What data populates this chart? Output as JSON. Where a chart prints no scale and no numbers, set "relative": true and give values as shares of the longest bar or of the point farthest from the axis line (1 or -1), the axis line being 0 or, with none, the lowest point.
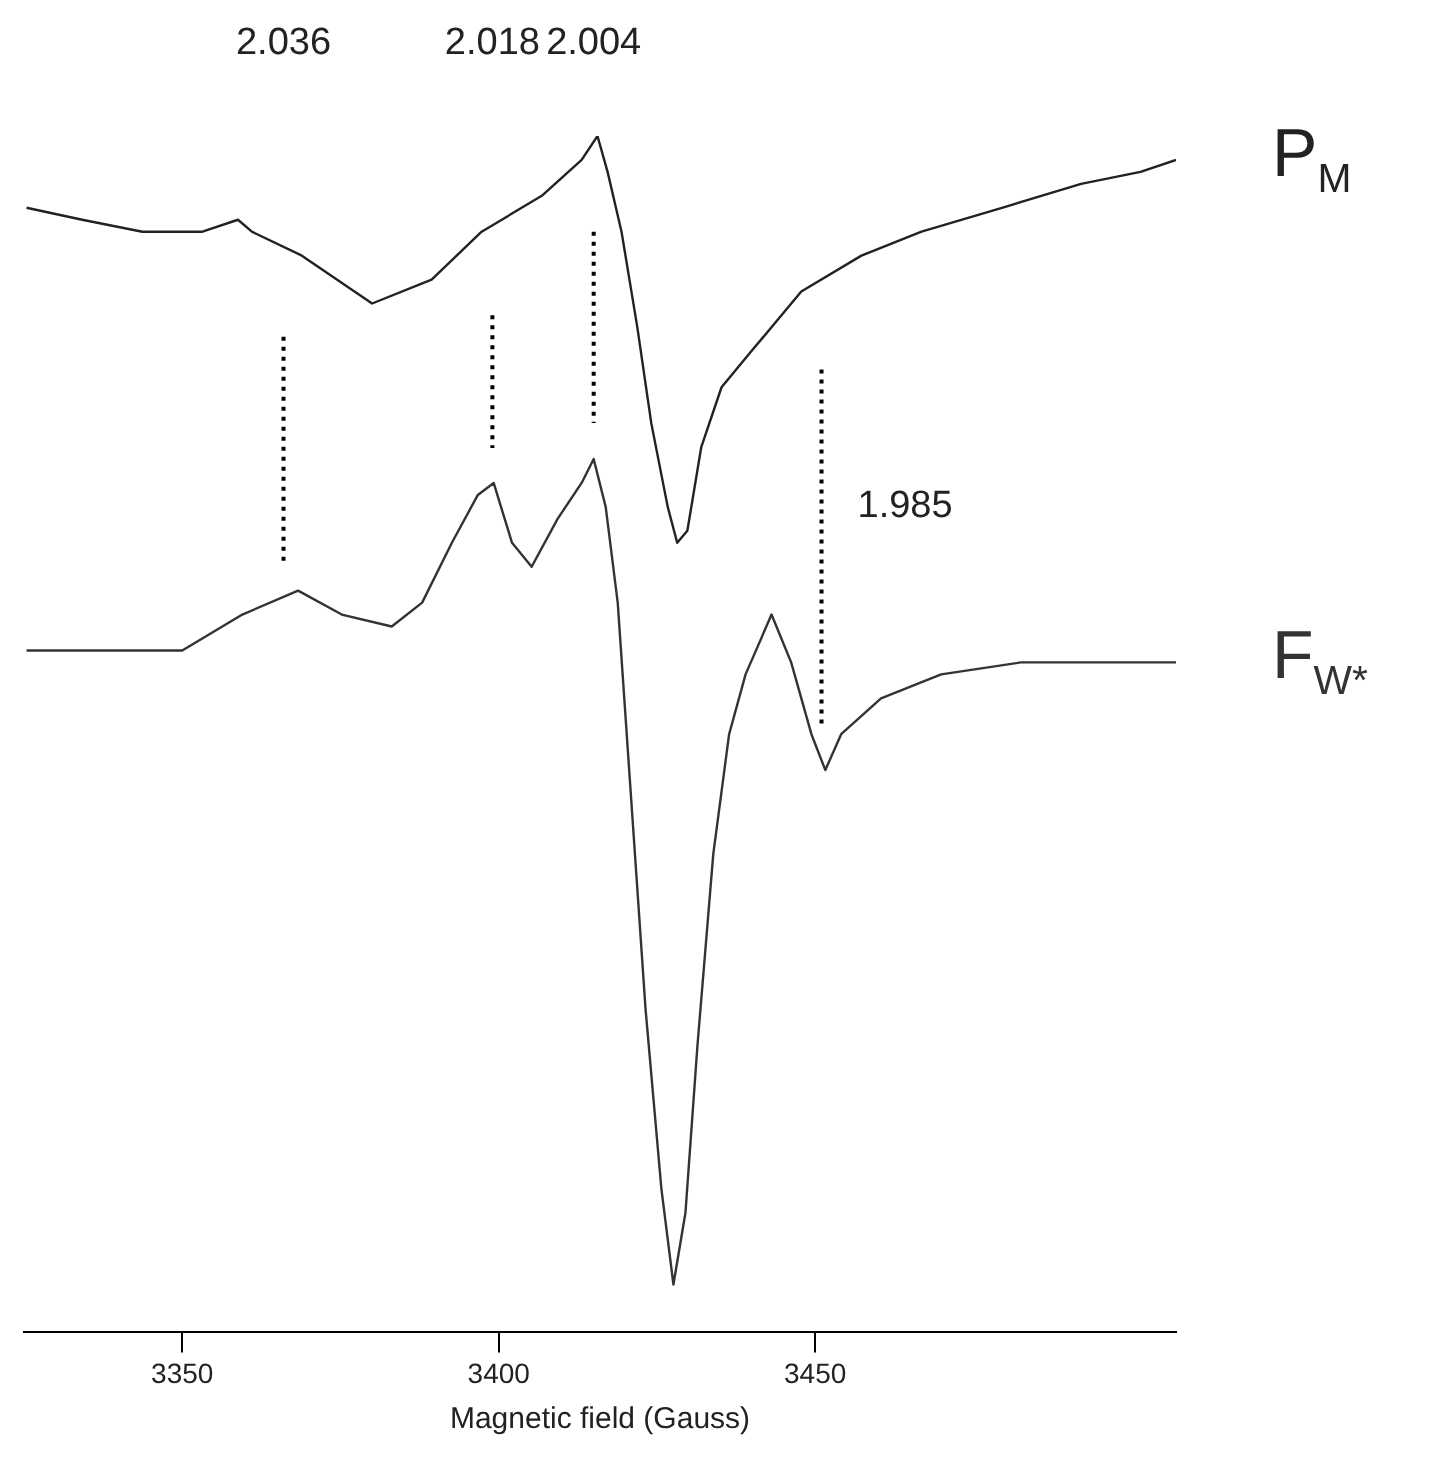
{
  "chart_data": {
    "type": "line",
    "relative": true,
    "xlabel": "Magnetic field (Gauss)",
    "xlim": [
      3325,
      3507
    ],
    "xticks": [
      3350,
      3400,
      3450
    ],
    "grid": false,
    "legend": false,
    "marker": "none",
    "line_style": "solid",
    "series": [
      {
        "name": "P$_{M}$",
        "color": "#222222",
        "x": [
          3325.4,
          3334.2,
          3343.7,
          3353.2,
          3358.8,
          3361.0,
          3368.9,
          3380.0,
          3389.4,
          3397.3,
          3406.8,
          3413.1,
          3415.6,
          3417.2,
          3419.4,
          3421.9,
          3424.1,
          3426.7,
          3428.2,
          3429.8,
          3432.0,
          3435.2,
          3439.9,
          3447.8,
          3457.3,
          3466.8,
          3479.5,
          3492.0,
          3501.4,
          3507.0
        ],
        "values": [
          0.94,
          0.93,
          0.92,
          0.92,
          0.93,
          0.92,
          0.9,
          0.86,
          0.88,
          0.92,
          0.95,
          0.98,
          1.0,
          0.97,
          0.92,
          0.84,
          0.76,
          0.69,
          0.66,
          0.67,
          0.74,
          0.79,
          0.82,
          0.87,
          0.9,
          0.92,
          0.94,
          0.96,
          0.97,
          0.98
        ]
      },
      {
        "name": "F$_{W*}$",
        "color": "#333333",
        "x": [
          3325.4,
          3337.4,
          3350.0,
          3359.5,
          3368.3,
          3375.2,
          3383.1,
          3387.9,
          3392.6,
          3396.7,
          3399.2,
          3402.1,
          3405.2,
          3409.3,
          3413.1,
          3415.0,
          3416.9,
          3418.8,
          3421.0,
          3423.2,
          3425.7,
          3427.6,
          3429.5,
          3431.4,
          3433.9,
          3436.4,
          3439.0,
          3443.1,
          3446.2,
          3449.4,
          3451.6,
          3454.1,
          3460.4,
          3469.9,
          3482.5,
          3495.1,
          3507.0
        ],
        "values": [
          0.57,
          0.57,
          0.57,
          0.6,
          0.62,
          0.6,
          0.59,
          0.61,
          0.66,
          0.7,
          0.71,
          0.66,
          0.64,
          0.68,
          0.71,
          0.73,
          0.69,
          0.61,
          0.44,
          0.27,
          0.12,
          0.04,
          0.1,
          0.24,
          0.4,
          0.5,
          0.55,
          0.6,
          0.56,
          0.5,
          0.47,
          0.5,
          0.53,
          0.55,
          0.56,
          0.56,
          0.56
        ]
      }
    ],
    "ref_lines": [
      {
        "axis": "x",
        "value": 3366,
        "color": "#000000",
        "line_style": "dotted"
      },
      {
        "axis": "x",
        "value": 3399,
        "color": "#000000",
        "line_style": "dotted"
      },
      {
        "axis": "x",
        "value": 3415,
        "color": "#000000",
        "line_style": "dotted"
      },
      {
        "axis": "x",
        "value": 3451,
        "color": "#000000",
        "line_style": "dotted"
      }
    ],
    "annotations": [
      "2.036",
      "2.018",
      "2.004",
      "1.985"
    ]
  }
}
